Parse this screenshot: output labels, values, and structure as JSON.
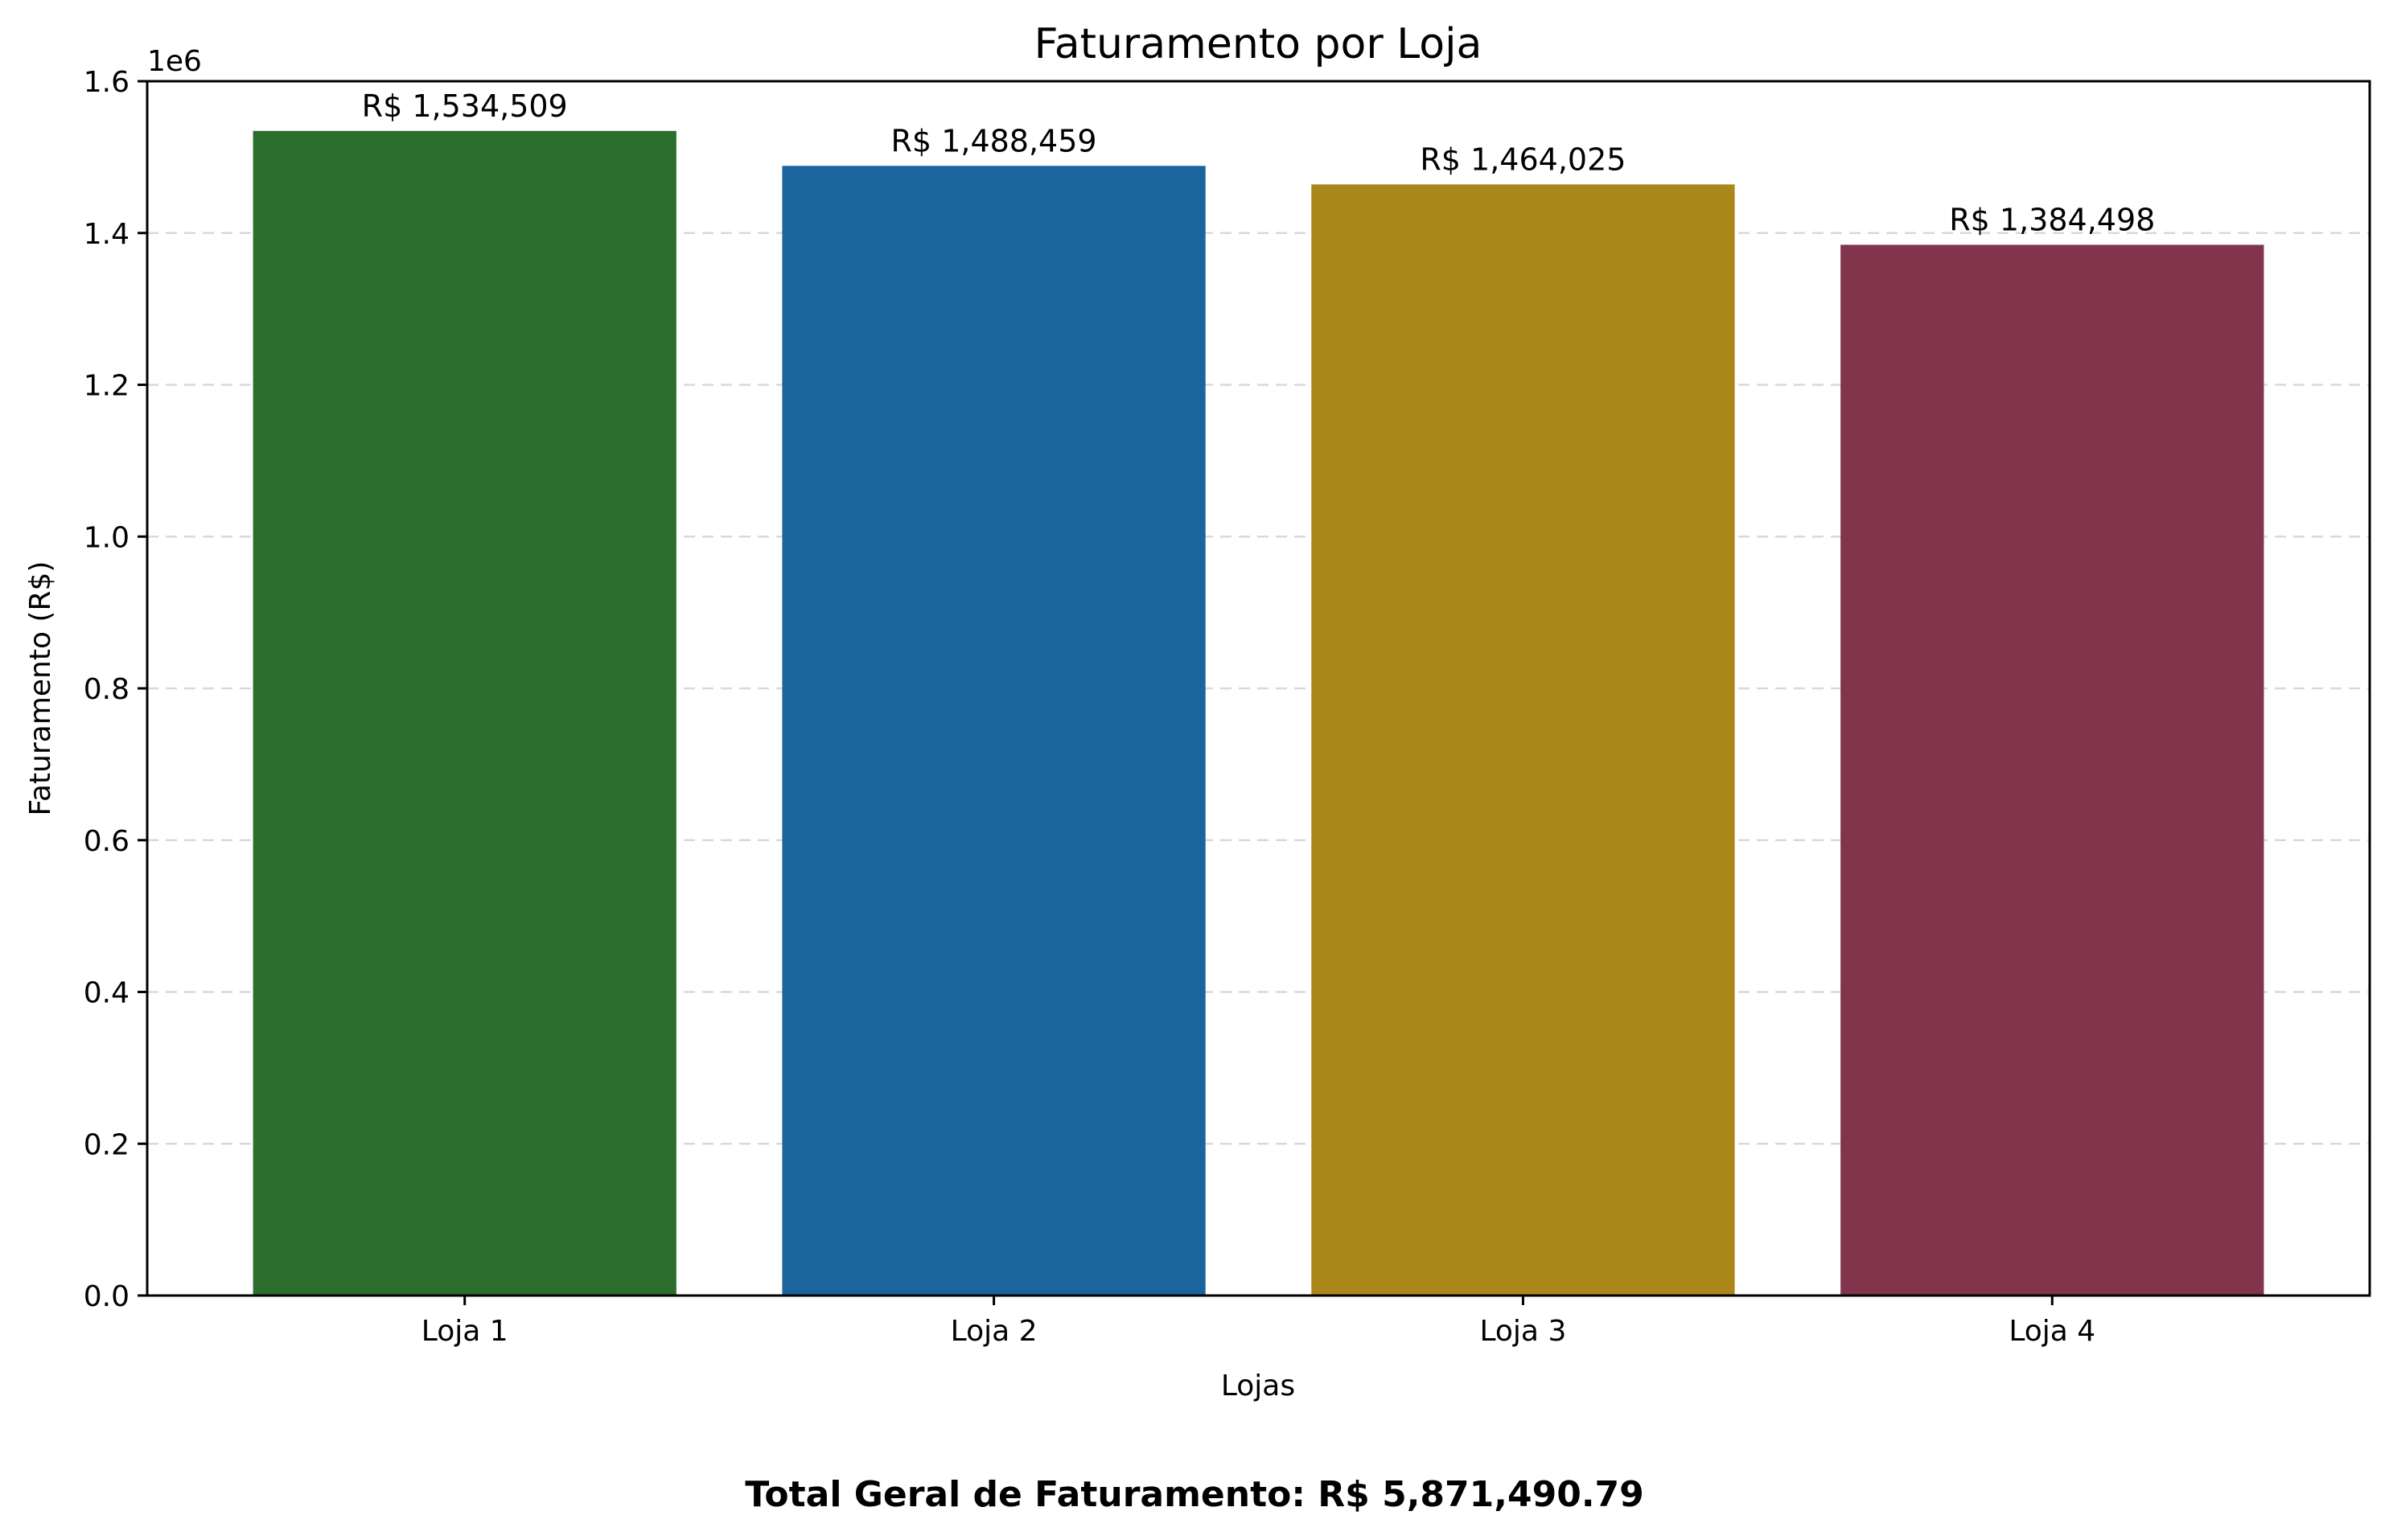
{
  "chart_data": {
    "type": "bar",
    "title": "Faturamento por Loja",
    "xlabel": "Lojas",
    "ylabel": "Faturamento (R$)",
    "y_offset_label": "1e6",
    "categories": [
      "Loja 1",
      "Loja 2",
      "Loja 3",
      "Loja 4"
    ],
    "values": [
      1534509,
      1488459,
      1464025,
      1384498
    ],
    "data_labels": [
      "R$ 1,534,509",
      "R$ 1,488,459",
      "R$ 1,464,025",
      "R$ 1,384,498"
    ],
    "colors": [
      "#2b6e2e",
      "#1b659f",
      "#ab8619",
      "#82344d"
    ],
    "ylim": [
      0,
      1600000
    ],
    "yticks": [
      0,
      200000,
      400000,
      600000,
      800000,
      1000000,
      1200000,
      1400000,
      1600000
    ],
    "ytick_labels": [
      "0.0",
      "0.2",
      "0.4",
      "0.6",
      "0.8",
      "1.0",
      "1.2",
      "1.4",
      "1.6"
    ],
    "grid": "y-dashed",
    "legend": "none"
  },
  "footer": {
    "total_text": "Total Geral de Faturamento: R$ 5,871,490.79"
  }
}
